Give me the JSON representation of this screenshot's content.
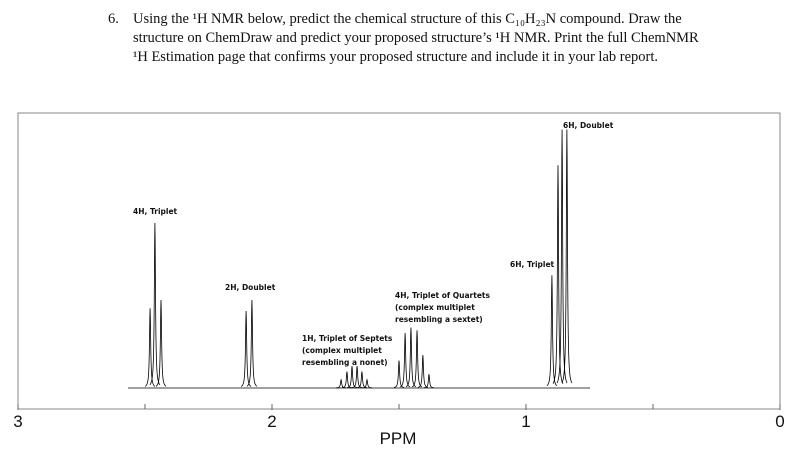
{
  "question": {
    "number": "6.",
    "lines": [
      "Using the ¹H NMR below, predict the chemical structure of this C₁₀H₂₃N compound. Draw the",
      "structure on ChemDraw and predict your proposed structure’s ¹H NMR. Print the full ChemNMR",
      "¹H Estimation page that confirms your proposed structure and include it in your lab report."
    ]
  },
  "chart_data": {
    "type": "spectrum",
    "xlabel": "PPM",
    "xlim": [
      3,
      0
    ],
    "xticks": [
      3,
      2,
      1,
      0
    ],
    "minor_xticks": [
      2.5,
      1.5,
      0.5
    ],
    "ylim": [
      0,
      100
    ],
    "color": "#000000",
    "x": [
      2.48,
      2.461,
      2.437,
      2.102,
      2.079,
      1.728,
      1.705,
      1.685,
      1.665,
      1.646,
      1.626,
      1.5,
      1.476,
      1.453,
      1.429,
      1.406,
      1.382,
      0.898,
      0.874,
      0.858,
      0.839
    ],
    "values": [
      29,
      60,
      32,
      28,
      32,
      3,
      6,
      8,
      8,
      6,
      3,
      10,
      20,
      22,
      21,
      12,
      5,
      41,
      81,
      94,
      94
    ],
    "annotations": [
      {
        "lines": [
          "6H, Doublet"
        ]
      },
      {
        "lines": [
          "4H, Triplet"
        ]
      },
      {
        "lines": [
          "6H, Triplet"
        ]
      },
      {
        "lines": [
          "2H, Doublet"
        ]
      },
      {
        "lines": [
          "4H, Triplet of Quartets",
          "(complex multiplet",
          "resembling a sextet)"
        ]
      },
      {
        "lines": [
          "1H, Triplet of Septets",
          "(complex multiplet",
          "resembling a nonet)"
        ]
      }
    ]
  }
}
